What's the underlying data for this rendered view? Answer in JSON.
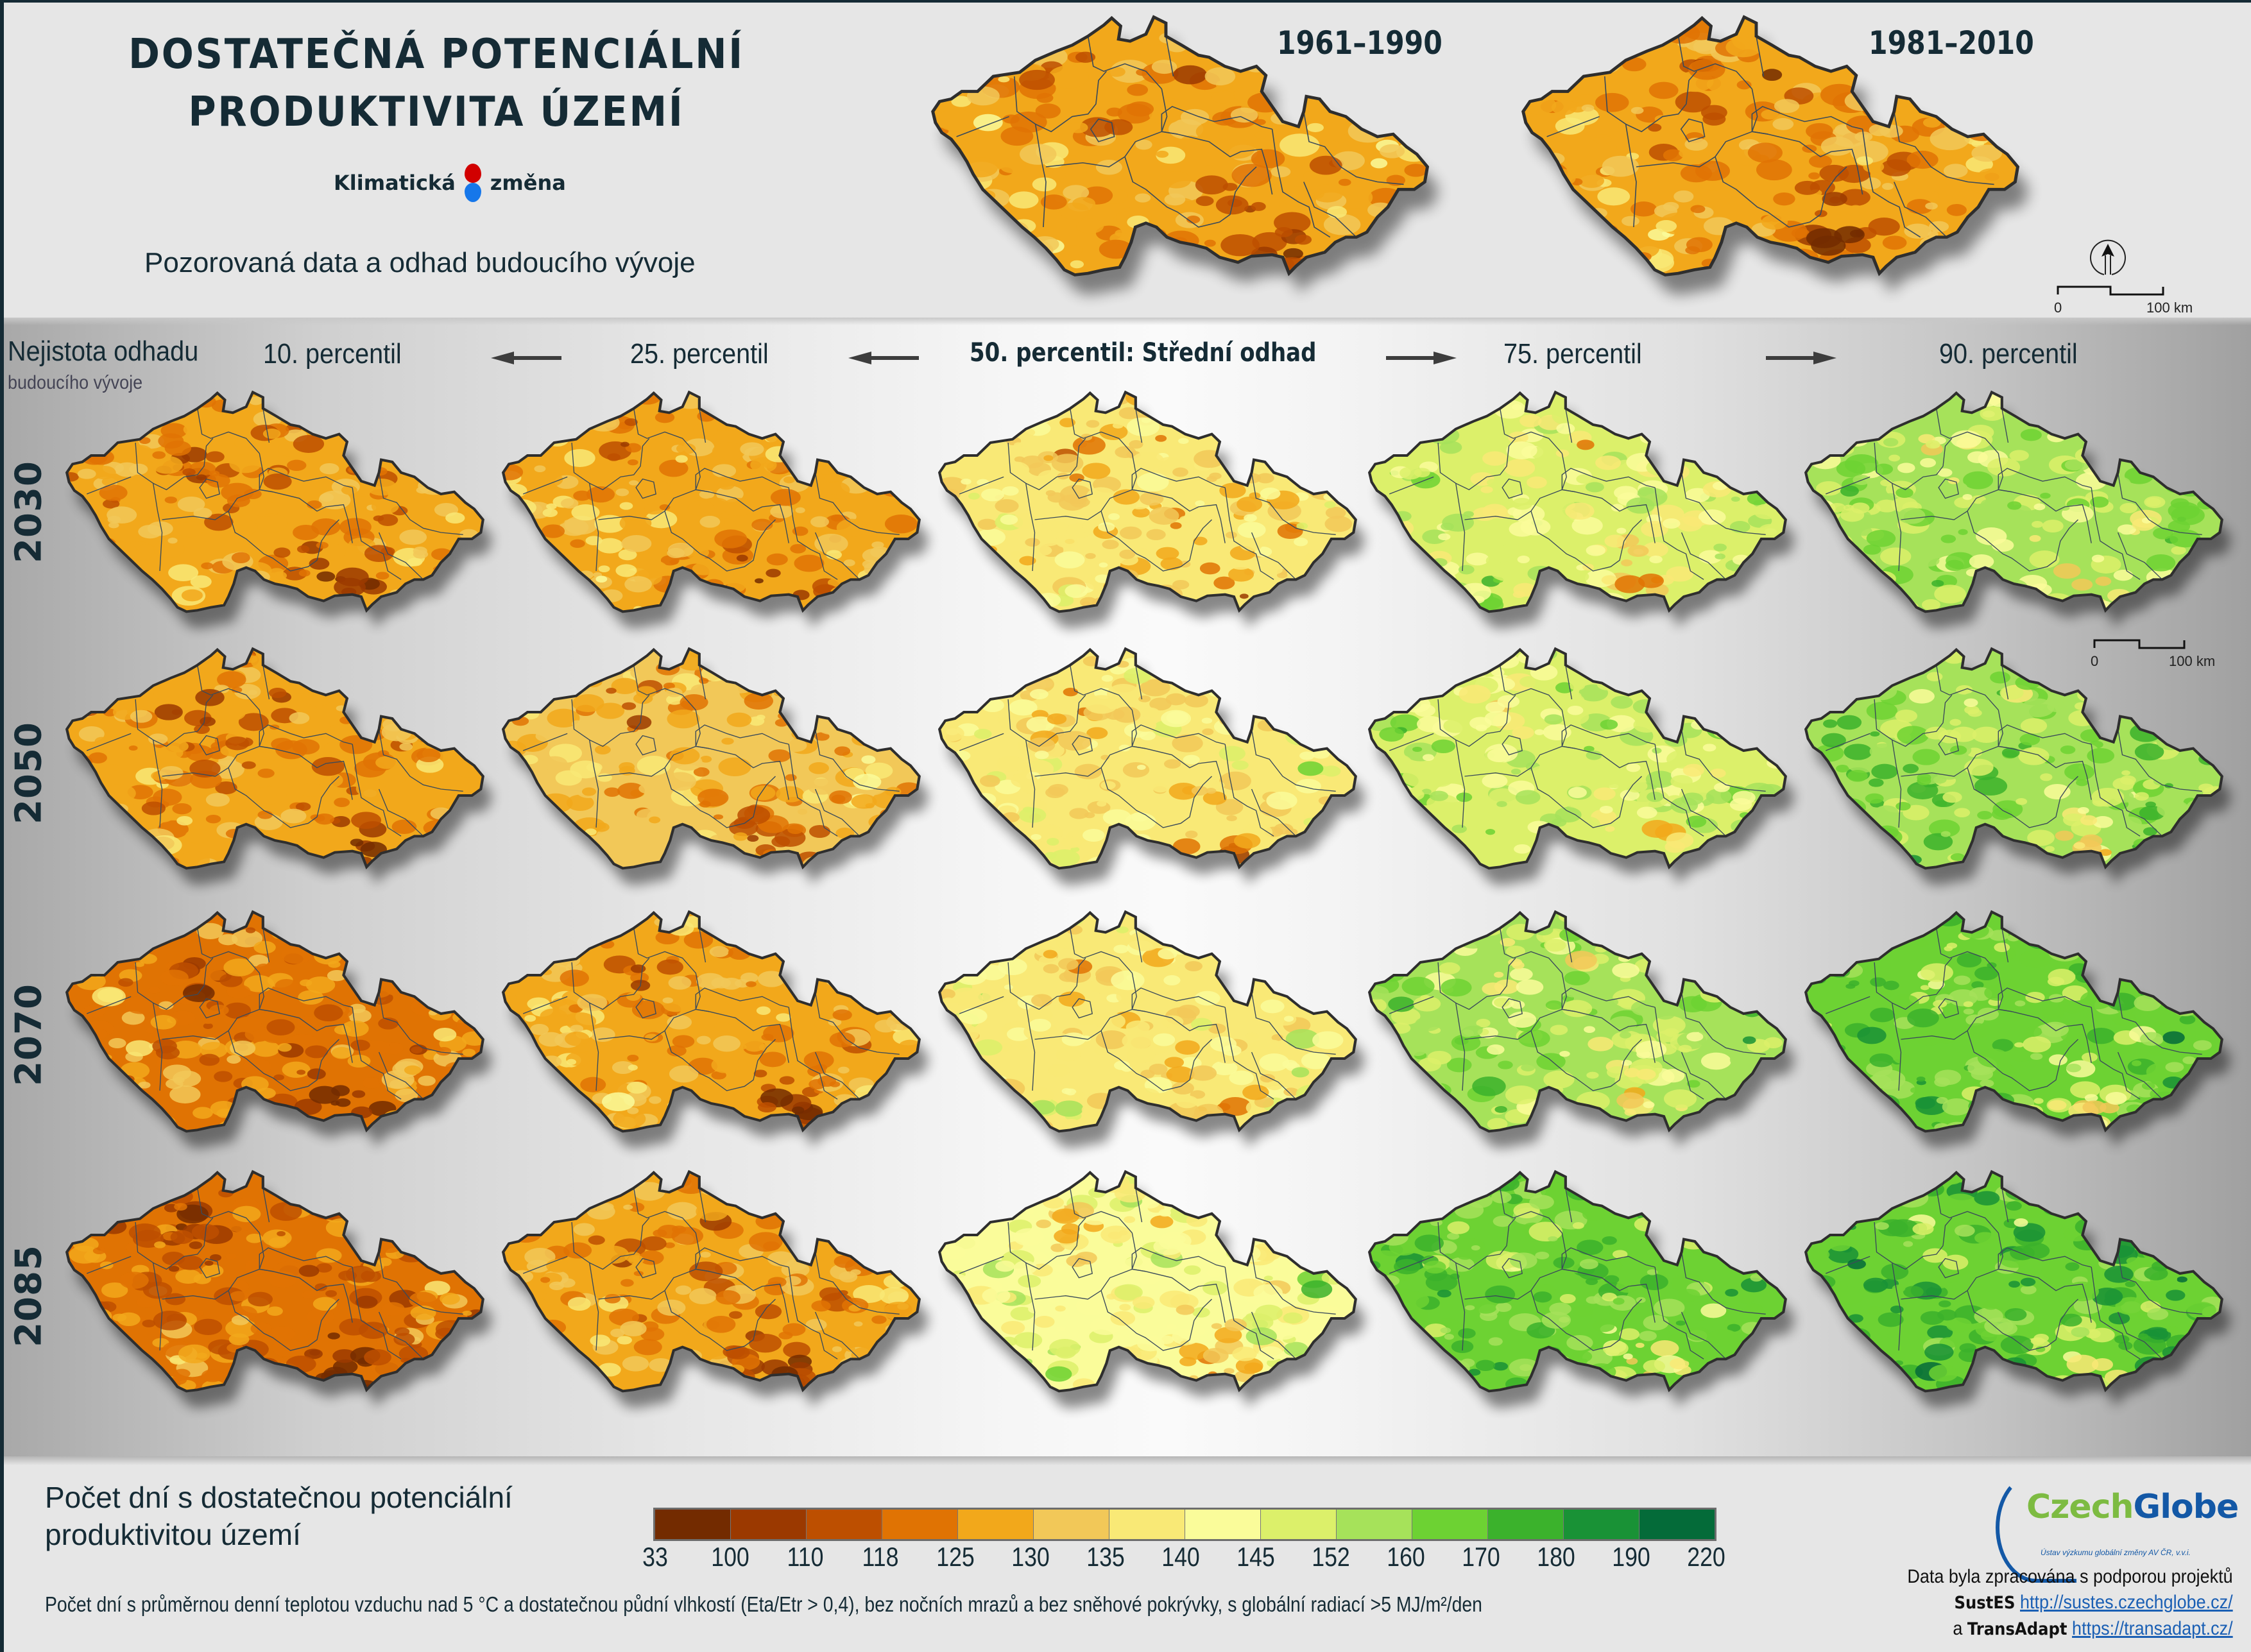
{
  "header": {
    "title_line1": "DOSTATEČNÁ POTENCIÁLNÍ",
    "title_line2": "PRODUKTIVITA ÚZEMÍ",
    "logo_word1": "Klimatická",
    "logo_word2": "změna",
    "logo_colors": {
      "red": "#d10000",
      "blue": "#1677ea"
    },
    "subtitle": "Pozorovaná data a odhad budoucího vývoje"
  },
  "observed_maps": [
    {
      "period": "1961–1990",
      "dominant_bin": 4.2
    },
    {
      "period": "1981–2010",
      "dominant_bin": 4.0
    }
  ],
  "scalebar": {
    "zero": "0",
    "end": "100 km"
  },
  "north_arrow": "north-arrow-icon",
  "uncertainty": {
    "title": "Nejistota odhadu",
    "subtitle": "budoucího vývoje"
  },
  "percentiles": [
    {
      "label": "10. percentil",
      "bold": false
    },
    {
      "label": "25. percentil",
      "bold": false
    },
    {
      "label": "50. percentil: Střední odhad",
      "bold": true
    },
    {
      "label": "75. percentil",
      "bold": false
    },
    {
      "label": "90. percentil",
      "bold": false
    }
  ],
  "years": [
    "2030",
    "2050",
    "2070",
    "2085"
  ],
  "projection_grid": [
    [
      3.6,
      4.4,
      5.6,
      7.6,
      8.6
    ],
    [
      3.8,
      4.6,
      6.2,
      8.2,
      9.4
    ],
    [
      3.4,
      4.3,
      6.4,
      8.6,
      9.8
    ],
    [
      3.0,
      4.0,
      7.2,
      9.6,
      10.4
    ]
  ],
  "legend": {
    "title": "Počet dní s dostatečnou potenciální produktivitou území",
    "ticks": [
      "33",
      "100",
      "110",
      "118",
      "125",
      "130",
      "135",
      "140",
      "145",
      "152",
      "160",
      "170",
      "180",
      "190",
      "220"
    ],
    "colors": [
      "#732b00",
      "#9b3900",
      "#bd4f00",
      "#e07303",
      "#f2a81b",
      "#f2c858",
      "#f9e976",
      "#fafc9a",
      "#dcf06a",
      "#a6e25a",
      "#6dd233",
      "#3bb22c",
      "#199236",
      "#046b39"
    ],
    "description": "Počet dní s průměrnou denní teplotou vzduchu nad 5 °C a dostatečnou půdní vlhkostí (Eta/Etr > 0,4), bez nočních mrazů a bez sněhové pokrývky, s globální radiací >5 MJ/m²/den"
  },
  "credits": {
    "org_part1": "Czech",
    "org_part2": "Globe",
    "org_sub": "Ústav výzkumu globální změny AV ČR, v.v.i.",
    "line1": "Data byla zpracována s podporou projektů",
    "project1": "SustES",
    "project1_url": "http://sustes.czechglobe.cz/",
    "conj": "a",
    "project2": "TransAdapt",
    "project2_url": "https://transadapt.cz/"
  }
}
